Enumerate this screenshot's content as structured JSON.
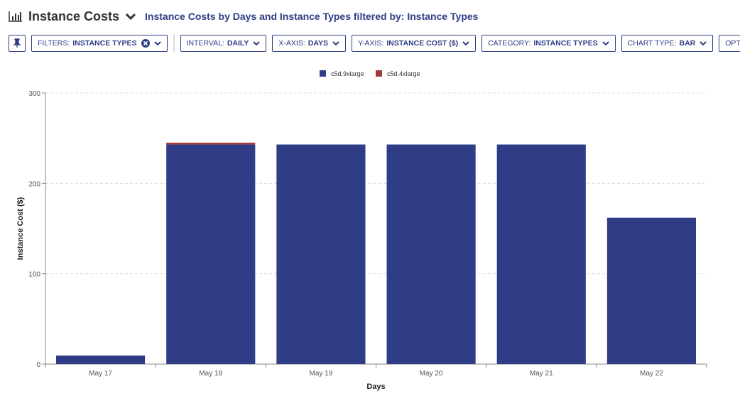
{
  "header": {
    "title": "Instance Costs",
    "subtitle": "Instance Costs by Days and Instance Types filtered by: Instance Types"
  },
  "toolbar": [
    {
      "label": "FILTERS:",
      "value": "INSTANCE TYPES",
      "clear": true
    },
    {
      "label": "INTERVAL:",
      "value": "DAILY"
    },
    {
      "label": "X-AXIS:",
      "value": "DAYS"
    },
    {
      "label": "Y-AXIS:",
      "value": "INSTANCE COST ($)"
    },
    {
      "label": "CATEGORY:",
      "value": "INSTANCE TYPES"
    },
    {
      "label": "CHART TYPE:",
      "value": "BAR"
    },
    {
      "label": "OPTIONS",
      "value": ""
    }
  ],
  "chart_data": {
    "type": "bar",
    "stacked": true,
    "xlabel": "Days",
    "ylabel": "Instance Cost ($)",
    "categories": [
      "May 17",
      "May 18",
      "May 19",
      "May 20",
      "May 21",
      "May 22"
    ],
    "ylim": [
      0,
      300
    ],
    "yticks": [
      0,
      100,
      200,
      300
    ],
    "grid": true,
    "legend": "top",
    "series": [
      {
        "name": "c5d.9xlarge",
        "color": "#2f3d86",
        "values": [
          9.5,
          243,
          243,
          243,
          243,
          162
        ]
      },
      {
        "name": "c5d.4xlarge",
        "color": "#a33a3a",
        "values": [
          0,
          2,
          0,
          0,
          0,
          0
        ]
      }
    ]
  }
}
